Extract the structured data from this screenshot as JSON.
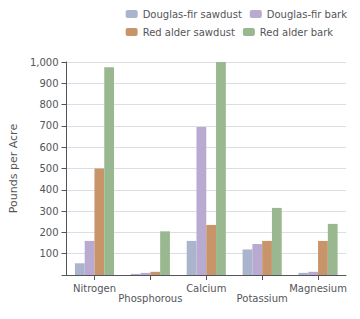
{
  "chart_data": {
    "type": "bar",
    "categories": [
      "Nitrogen",
      "Phosphorous",
      "Calcium",
      "Potassium",
      "Magnesium"
    ],
    "series": [
      {
        "name": "Douglas-fir sawdust",
        "color": "#aab4cc",
        "values": [
          55,
          5,
          160,
          120,
          10
        ]
      },
      {
        "name": "Douglas-fir bark",
        "color": "#b8aad0",
        "values": [
          160,
          10,
          695,
          145,
          15
        ]
      },
      {
        "name": "Red alder sawdust",
        "color": "#c8956a",
        "values": [
          500,
          15,
          235,
          160,
          160
        ]
      },
      {
        "name": "Red alder bark",
        "color": "#9ab890",
        "values": [
          975,
          205,
          1000,
          315,
          240
        ]
      }
    ],
    "ylabel": "Pounds per Acre",
    "ylim": [
      0,
      1000
    ],
    "yticks": [
      {
        "value": 0,
        "label": ""
      },
      100,
      200,
      300,
      400,
      500,
      600,
      700,
      800,
      900,
      {
        "value": 1000,
        "label": "1,000"
      }
    ],
    "grid": true,
    "legend": "upper right"
  }
}
